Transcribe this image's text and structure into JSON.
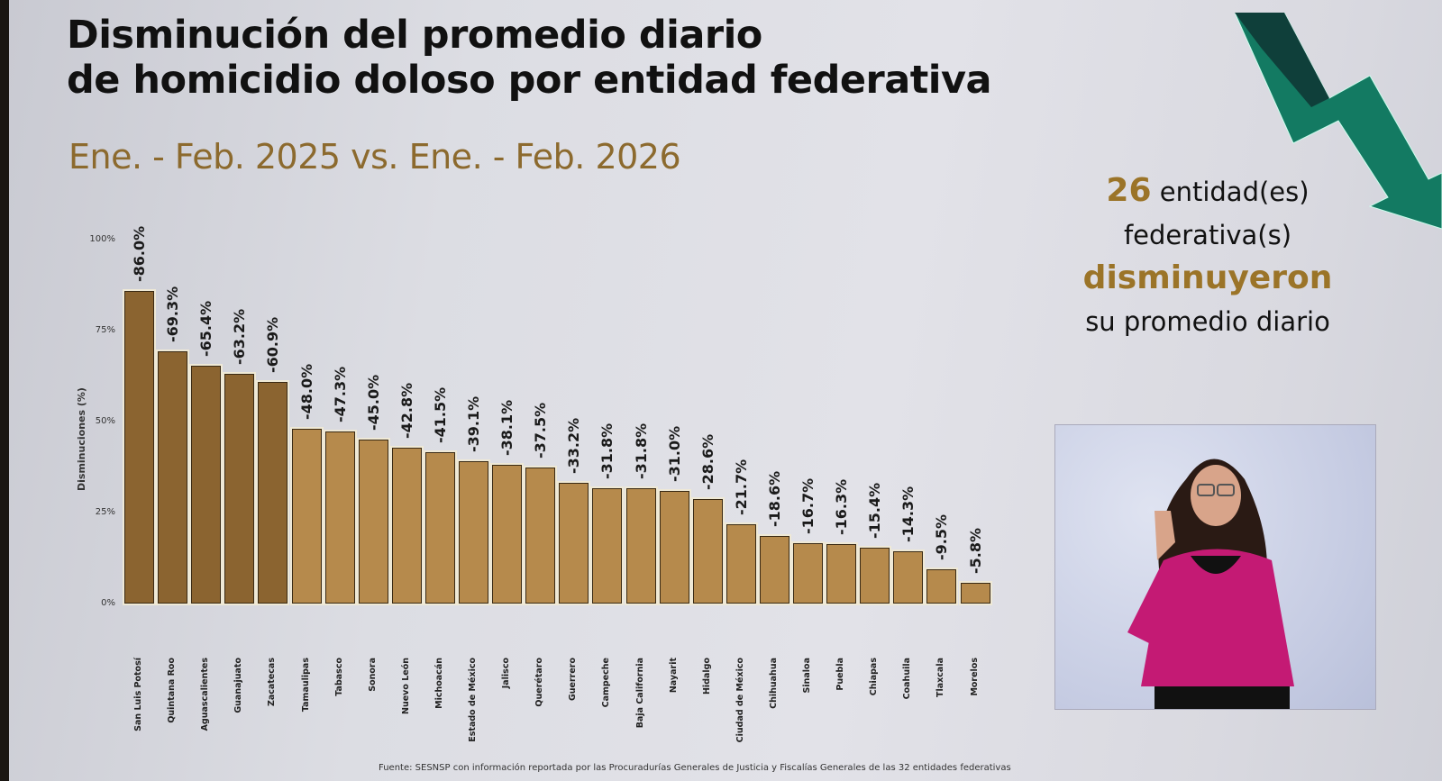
{
  "slide": {
    "title_line1": "Disminución del promedio diario",
    "title_line2": "de homicidio doloso por entidad federativa",
    "subtitle": "Ene. - Feb. 2025 vs. Ene. - Feb. 2026",
    "callout": {
      "count": "26",
      "line1_rest": "entidad(es)",
      "line2": "federativa(s)",
      "verb": "disminuyeron",
      "line4": "su promedio diario"
    },
    "source": "Fuente: SESNSP con información reportada por las Procuradurías Generales de Justicia y Fiscalías Generales de las 32 entidades federativas",
    "colors": {
      "bar_top5": "#8b6430",
      "bar_rest": "#b68a4c",
      "accent_gold": "#9b7428",
      "arrow_dark": "#0f3f3a",
      "arrow_light": "#137a62"
    },
    "interpreter": {
      "label": "sign-language-interpreter-video"
    }
  },
  "chart_data": {
    "type": "bar",
    "title": "Disminución del promedio diario de homicidio doloso por entidad federativa",
    "subtitle": "Ene. - Feb. 2025 vs. Ene. - Feb. 2026",
    "xlabel": "",
    "ylabel": "Disminuciones (%)",
    "ylim": [
      0,
      100
    ],
    "yticks": [
      "0%",
      "25%",
      "50%",
      "75%",
      "100%"
    ],
    "grid": false,
    "legend": null,
    "categories": [
      "San Luis Potosí",
      "Quintana Roo",
      "Aguascalientes",
      "Guanajuato",
      "Zacatecas",
      "Tamaulipas",
      "Tabasco",
      "Sonora",
      "Nuevo León",
      "Michoacán",
      "Estado de México",
      "Jalisco",
      "Querétaro",
      "Guerrero",
      "Campeche",
      "Baja California",
      "Nayarit",
      "Hidalgo",
      "Ciudad de México",
      "Chihuahua",
      "Sinaloa",
      "Puebla",
      "Chiapas",
      "Coahuila",
      "Tlaxcala",
      "Morelos"
    ],
    "values": [
      86.0,
      69.3,
      65.4,
      63.2,
      60.9,
      48.0,
      47.3,
      45.0,
      42.8,
      41.5,
      39.1,
      38.1,
      37.5,
      33.2,
      31.8,
      31.8,
      31.0,
      28.6,
      21.7,
      18.6,
      16.7,
      16.3,
      15.4,
      14.3,
      9.5,
      5.8
    ],
    "labels": [
      "-86.0%",
      "-69.3%",
      "-65.4%",
      "-63.2%",
      "-60.9%",
      "-48.0%",
      "-47.3%",
      "-45.0%",
      "-42.8%",
      "-41.5%",
      "-39.1%",
      "-38.1%",
      "-37.5%",
      "-33.2%",
      "-31.8%",
      "-31.8%",
      "-31.0%",
      "-28.6%",
      "-21.7%",
      "-18.6%",
      "-16.7%",
      "-16.3%",
      "-15.4%",
      "-14.3%",
      "-9.5%",
      "-5.8%"
    ]
  }
}
